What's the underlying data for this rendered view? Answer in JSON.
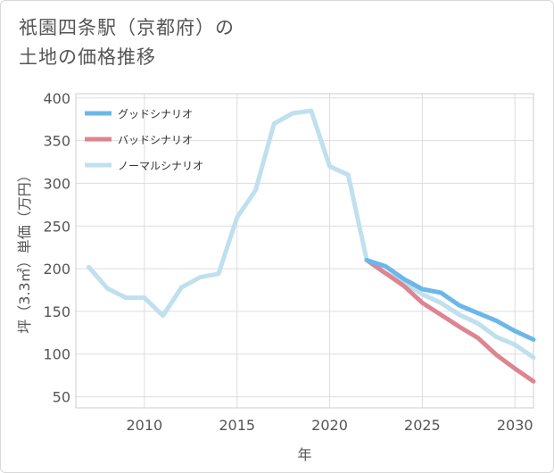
{
  "title": {
    "line1": "祇園四条駅（京都府）の",
    "line2": "土地の価格推移"
  },
  "chart_data": {
    "type": "line",
    "xlabel": "年",
    "ylabel": "坪（3.3㎡）単価（万円）",
    "xlim": [
      2006.3,
      2031
    ],
    "ylim": [
      37,
      405
    ],
    "xticks": [
      2010,
      2015,
      2020,
      2025,
      2030
    ],
    "yticks": [
      50,
      100,
      150,
      200,
      250,
      300,
      350,
      400
    ],
    "grid": true,
    "legend_position": "top-left",
    "series": [
      {
        "name": "グッドシナリオ",
        "color": "#6bb8e8",
        "x": [
          2022,
          2023,
          2024,
          2025,
          2026,
          2027,
          2028,
          2029,
          2030,
          2031
        ],
        "values": [
          210,
          203,
          188,
          176,
          172,
          157,
          148,
          139,
          127,
          117
        ]
      },
      {
        "name": "バッドシナリオ",
        "color": "#dd8591",
        "x": [
          2022,
          2023,
          2024,
          2025,
          2026,
          2027,
          2028,
          2029,
          2030,
          2031
        ],
        "values": [
          210,
          195,
          180,
          160,
          146,
          132,
          119,
          99,
          83,
          68
        ]
      },
      {
        "name": "ノーマルシナリオ",
        "color": "#bfe0ee",
        "x": [
          2007,
          2008,
          2009,
          2010,
          2011,
          2012,
          2013,
          2014,
          2015,
          2016,
          2017,
          2018,
          2019,
          2020,
          2021,
          2022,
          2023,
          2024,
          2025,
          2026,
          2027,
          2028,
          2029,
          2030,
          2031
        ],
        "values": [
          202,
          177,
          166,
          166,
          145,
          178,
          190,
          194,
          260,
          292,
          370,
          382,
          385,
          320,
          310,
          210,
          195,
          184,
          170,
          160,
          146,
          136,
          120,
          111,
          96
        ]
      }
    ]
  }
}
